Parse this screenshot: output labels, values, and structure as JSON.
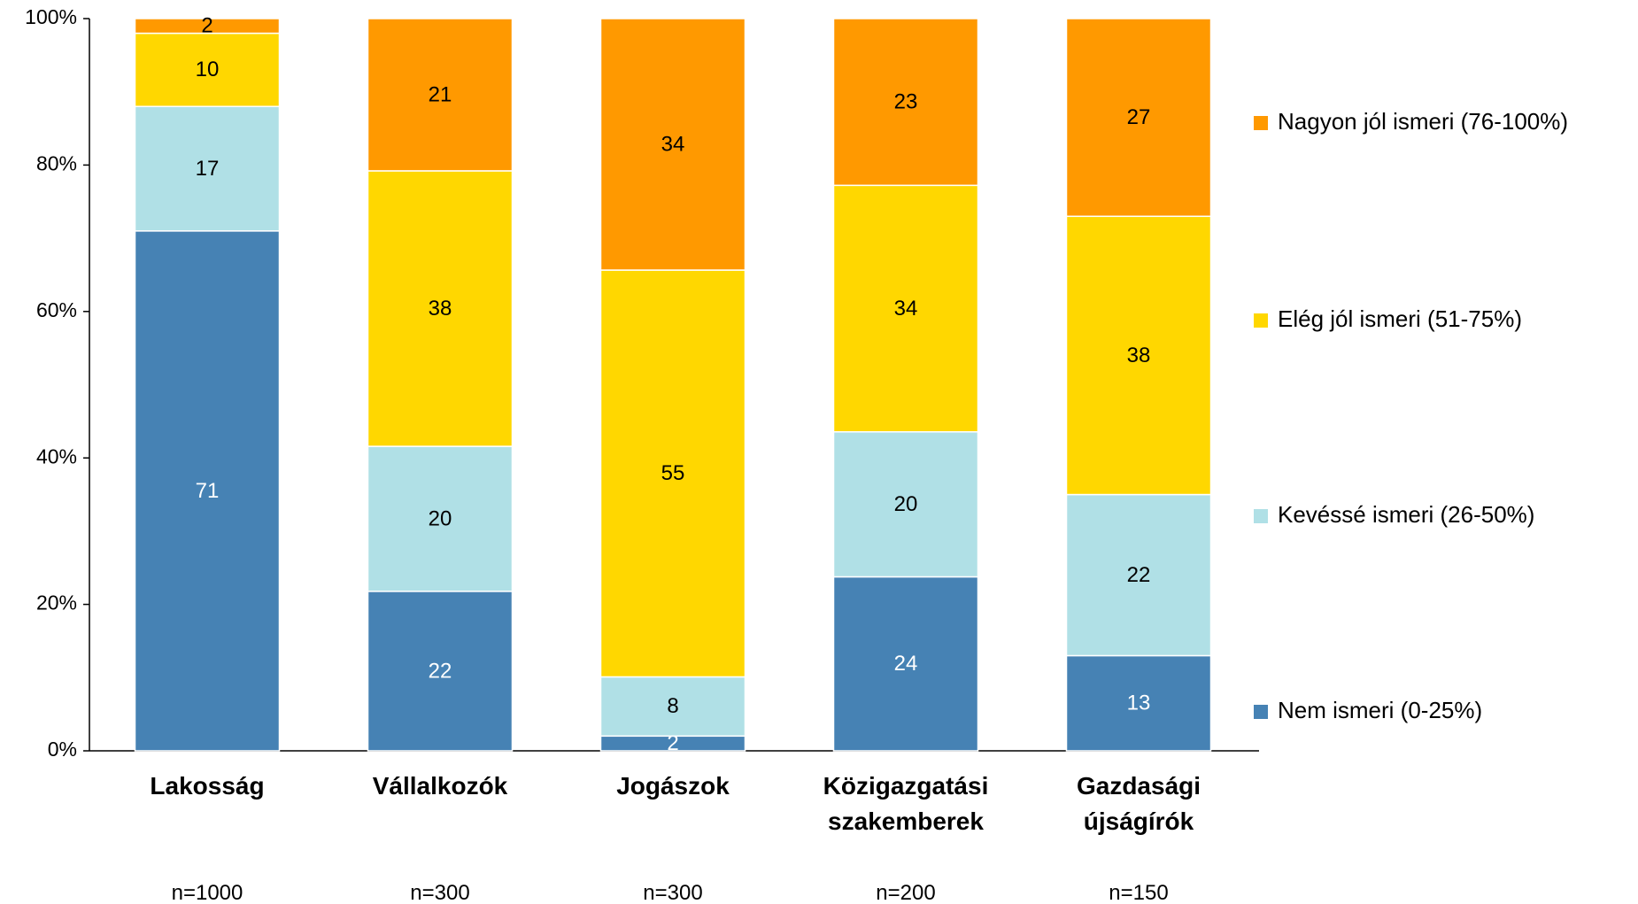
{
  "chart_data": {
    "type": "bar",
    "stacked": "percent",
    "categories": [
      "Lakosság",
      "Vállalkozók",
      "Jogászok",
      "Közigazgatási szakemberek",
      "Gazdasági újságírók"
    ],
    "notes": [
      "n=1000",
      "n=300",
      "n=300",
      "n=200",
      "n=150"
    ],
    "series": [
      {
        "name": "Nem ismeri (0-25%)",
        "color": "#4682b4",
        "label_color": "#ffffff",
        "values": [
          71,
          22,
          2,
          24,
          13
        ]
      },
      {
        "name": "Kevéssé ismeri (26-50%)",
        "color": "#b0e0e6",
        "label_color": "#000000",
        "values": [
          17,
          20,
          8,
          20,
          22
        ]
      },
      {
        "name": "Elég jól ismeri (51-75%)",
        "color": "#ffd700",
        "label_color": "#000000",
        "values": [
          10,
          38,
          55,
          34,
          38
        ]
      },
      {
        "name": "Nagyon jól ismeri (76-100%)",
        "color": "#ff9900",
        "label_color": "#000000",
        "values": [
          2,
          21,
          34,
          23,
          27
        ]
      }
    ],
    "ylim": [
      0,
      100
    ],
    "yticks": [
      {
        "value": 0,
        "label": "0%"
      },
      {
        "value": 20,
        "label": "20%"
      },
      {
        "value": 40,
        "label": "40%"
      },
      {
        "value": 60,
        "label": "60%"
      },
      {
        "value": 80,
        "label": "80%"
      },
      {
        "value": 100,
        "label": "100%"
      }
    ],
    "grid": false,
    "legend": "right"
  }
}
